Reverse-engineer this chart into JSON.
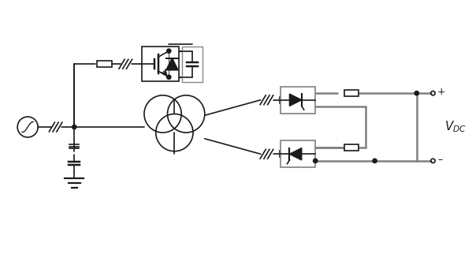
{
  "bg_color": "#ffffff",
  "line_color": "#1a1a1a",
  "gray_color": "#808080",
  "fig_width": 5.99,
  "fig_height": 3.22,
  "dpi": 100
}
